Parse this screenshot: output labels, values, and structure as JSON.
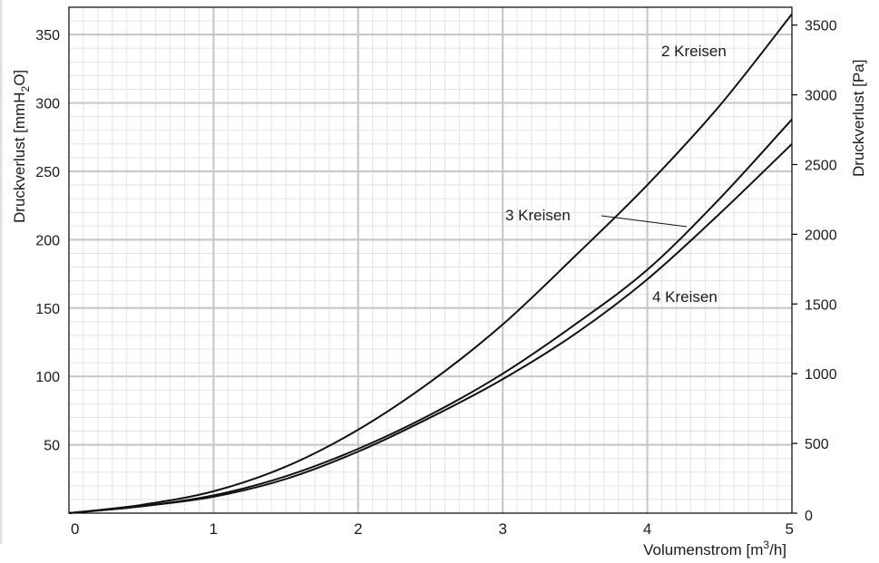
{
  "chart_data": {
    "type": "line",
    "xlabel": "Volumenstrom [m³/h]",
    "xlabel_parts": {
      "base": "Volumenstrom [m",
      "sup": "3",
      "tail": "/h]"
    },
    "ylabel_left": "Druckverlust [mmH₂O]",
    "ylabel_left_parts": {
      "base": "Druckverlust [mmH",
      "sub": "2",
      "tail": "O]"
    },
    "ylabel_right": "Druckverlust [Pa]",
    "xlim": [
      0,
      5
    ],
    "ylim_left": [
      0,
      370
    ],
    "ylim_right": [
      0,
      3628
    ],
    "x_ticks": [
      "0",
      "1",
      "2",
      "3",
      "4",
      "5"
    ],
    "y_ticks_left": [
      "50",
      "100",
      "150",
      "200",
      "250",
      "300",
      "350"
    ],
    "y_ticks_left_values": [
      50,
      100,
      150,
      200,
      250,
      300,
      350
    ],
    "y_ticks_right": [
      "0",
      "500",
      "1000",
      "1500",
      "2000",
      "2500",
      "3000",
      "3500"
    ],
    "y_ticks_right_values": [
      0,
      500,
      1000,
      1500,
      2000,
      2500,
      3000,
      3500
    ],
    "grid": true,
    "x": [
      0,
      0.5,
      1,
      1.5,
      2,
      2.5,
      3,
      3.5,
      4,
      4.5,
      5
    ],
    "series": [
      {
        "name": "2 Kreisen",
        "values": [
          0,
          6,
          16,
          34,
          61,
          96,
          138,
          188,
          240,
          298,
          365
        ]
      },
      {
        "name": "3 Kreisen",
        "values": [
          0,
          5,
          13,
          27,
          47,
          72,
          102,
          138,
          178,
          230,
          288
        ]
      },
      {
        "name": "4 Kreisen",
        "values": [
          0,
          5,
          12,
          25,
          45,
          70,
          98,
          131,
          171,
          219,
          270
        ]
      }
    ],
    "annotations": [
      {
        "text": "2 Kreisen",
        "series": "2 Kreisen"
      },
      {
        "text": "3 Kreisen",
        "series": "3 Kreisen"
      },
      {
        "text": "4 Kreisen",
        "series": "4 Kreisen"
      }
    ]
  }
}
